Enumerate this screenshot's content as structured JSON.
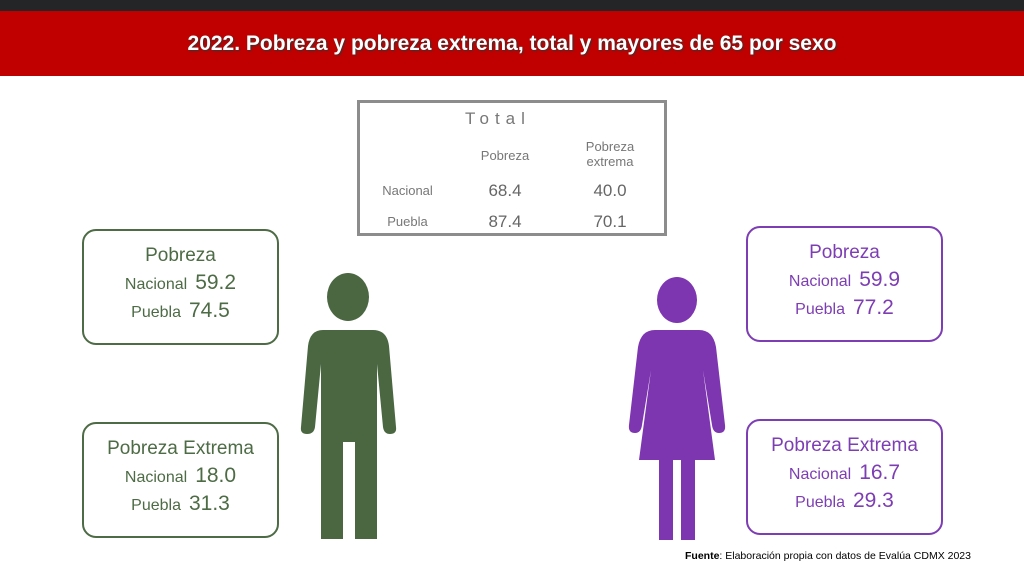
{
  "title": "2022. Pobreza y pobreza extrema, total y mayores de 65 por sexo",
  "total_table": {
    "title": "Total",
    "col1": "Pobreza",
    "col2": "Pobreza extrema",
    "rows": [
      {
        "label": "Nacional",
        "pobreza": "68.4",
        "extrema": "40.0"
      },
      {
        "label": "Puebla",
        "pobreza": "87.4",
        "extrema": "70.1"
      }
    ]
  },
  "men": {
    "color": "#4d6b45",
    "pobreza": {
      "title": "Pobreza",
      "nacional_label": "Nacional",
      "nacional": "59.2",
      "puebla_label": "Puebla",
      "puebla": "74.5"
    },
    "extrema": {
      "title": "Pobreza Extrema",
      "nacional_label": "Nacional",
      "nacional": "18.0",
      "puebla_label": "Puebla",
      "puebla": "31.3"
    }
  },
  "women": {
    "color": "#7d3db3",
    "pobreza": {
      "title": "Pobreza",
      "nacional_label": "Nacional",
      "nacional": "59.9",
      "puebla_label": "Puebla",
      "puebla": "77.2"
    },
    "extrema": {
      "title": "Pobreza Extrema",
      "nacional_label": "Nacional",
      "nacional": "16.7",
      "puebla_label": "Puebla",
      "puebla": "29.3"
    }
  },
  "footer": {
    "label": "Fuente",
    "text": ": Elaboración propia con datos de Evalúa CDMX 2023"
  }
}
